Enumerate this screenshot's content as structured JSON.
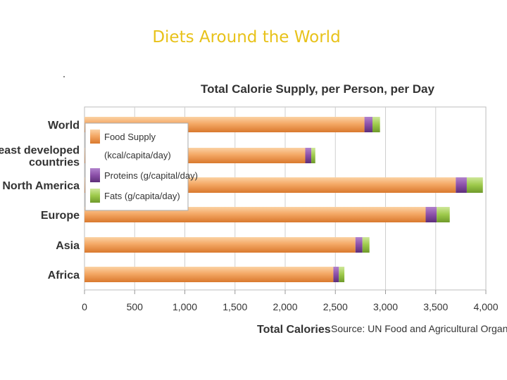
{
  "slide": {
    "title": "Diets Around the World"
  },
  "chart_data": {
    "type": "bar",
    "orientation": "horizontal",
    "stacked": true,
    "title": "Total Calorie Supply, per Person, per Day",
    "xlabel": "Total Calories",
    "source": "Source: UN Food and Agricultural Organization",
    "xlim": [
      0,
      4000
    ],
    "x_ticks": [
      "0",
      "500",
      "1,000",
      "1,500",
      "2,000",
      "2,500",
      "3,000",
      "3,500",
      "4,000"
    ],
    "x_tick_values": [
      0,
      500,
      1000,
      1500,
      2000,
      2500,
      3000,
      3500,
      4000
    ],
    "grid": true,
    "legend_position": "top-left",
    "categories": [
      [
        "World"
      ],
      [
        "Least developed",
        "countries"
      ],
      [
        "North America"
      ],
      [
        "Europe"
      ],
      [
        "Asia"
      ],
      [
        "Africa"
      ]
    ],
    "series": [
      {
        "name": "Food Supply",
        "name_line2": "(kcal/capita/day)",
        "color": "#f0a060",
        "values": [
          2790,
          2200,
          3700,
          3400,
          2700,
          2480
        ]
      },
      {
        "name": "Proteins (g/capital/day)",
        "color": "#8b4fa8",
        "values": [
          80,
          60,
          110,
          110,
          70,
          55
        ]
      },
      {
        "name": "Fats (g/capita/day)",
        "color": "#9dc94a",
        "values": [
          75,
          40,
          160,
          130,
          70,
          55
        ]
      }
    ]
  }
}
